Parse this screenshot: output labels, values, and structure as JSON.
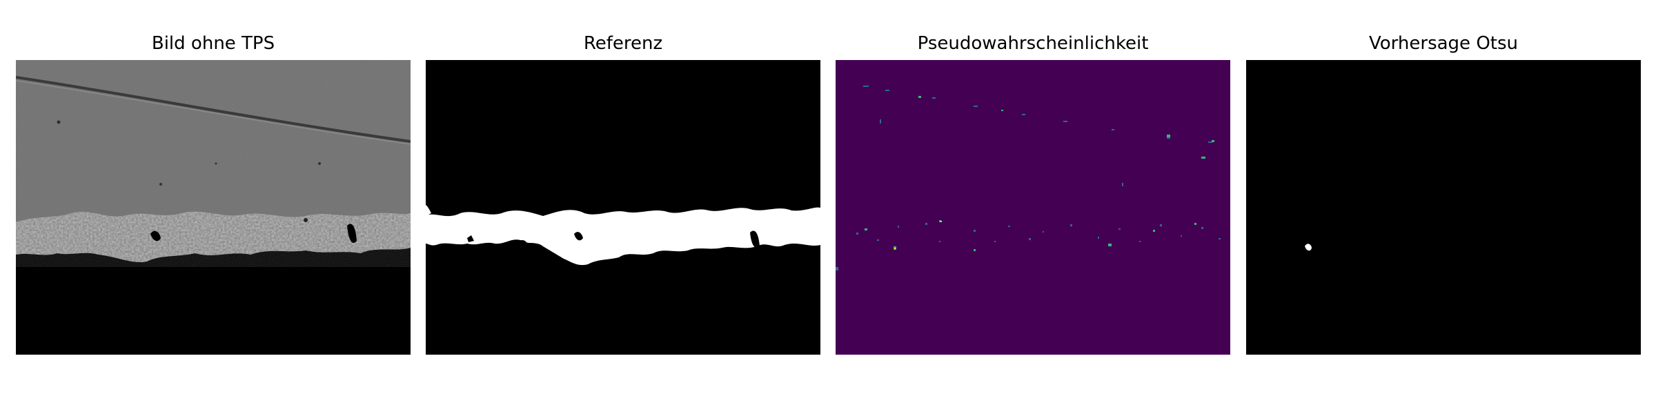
{
  "figure": {
    "panels": [
      {
        "title": "Bild ohne TPS",
        "kind": "grayscale-micrograph",
        "colors": {
          "surface": "#6e6e6e",
          "scratch": "#3a3a3a",
          "background": "#000000"
        }
      },
      {
        "title": "Referenz",
        "kind": "binary-mask",
        "colors": {
          "foreground": "#ffffff",
          "background": "#000000"
        }
      },
      {
        "title": "Pseudowahrscheinlichkeit",
        "kind": "probability-map",
        "colors": {
          "background": "#440154",
          "low": "#31688e",
          "mid": "#35b779",
          "high": "#fde725"
        }
      },
      {
        "title": "Vorhersage Otsu",
        "kind": "binary-mask",
        "colors": {
          "foreground": "#ffffff",
          "background": "#000000"
        }
      }
    ]
  }
}
